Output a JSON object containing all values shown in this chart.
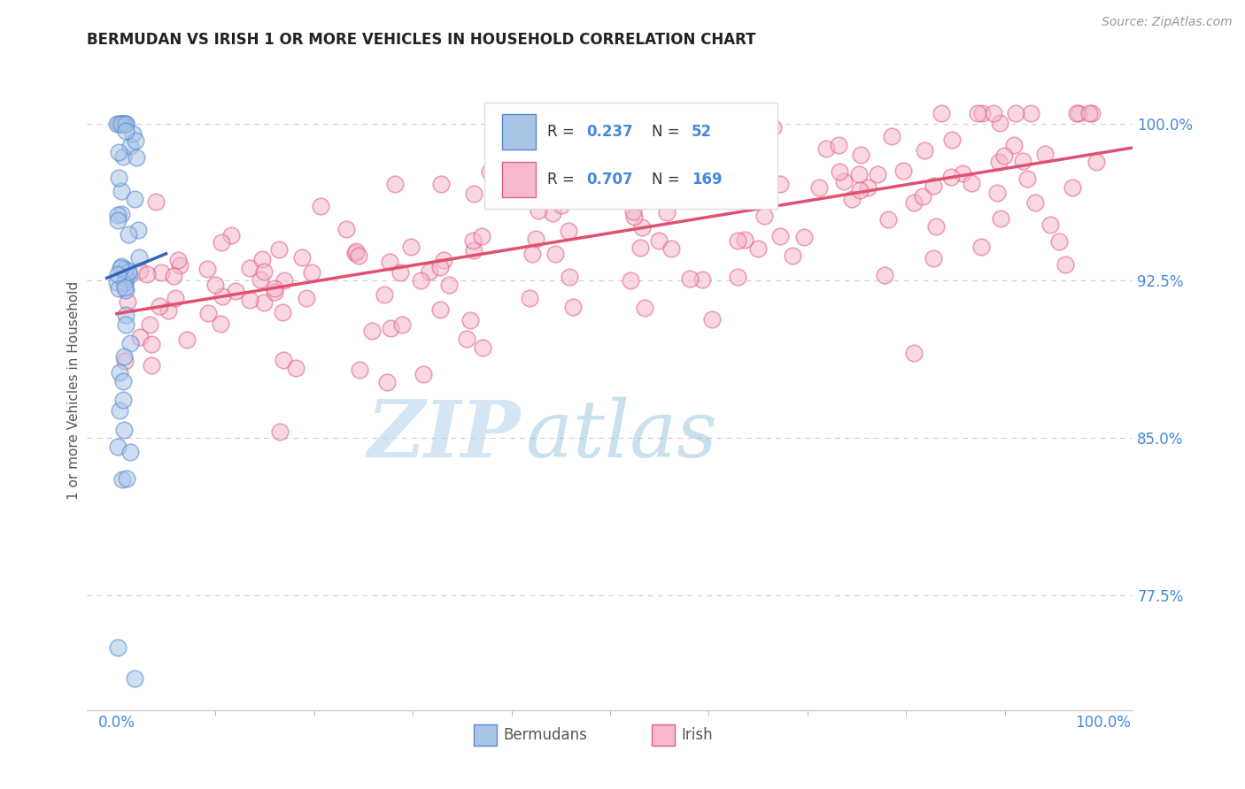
{
  "title": "BERMUDAN VS IRISH 1 OR MORE VEHICLES IN HOUSEHOLD CORRELATION CHART",
  "source": "Source: ZipAtlas.com",
  "ylabel": "1 or more Vehicles in Household",
  "watermark_zip": "ZIP",
  "watermark_atlas": "atlas",
  "legend_labels": [
    "Bermudans",
    "Irish"
  ],
  "bermudans": {
    "R": 0.237,
    "N": 52,
    "fill_color": "#aac4e8",
    "edge_color": "#5588cc",
    "line_color": "#3366bb"
  },
  "irish": {
    "R": 0.707,
    "N": 169,
    "fill_color": "#f5b8cc",
    "edge_color": "#e06080",
    "line_color": "#e05070"
  },
  "xlim": [
    -3,
    103
  ],
  "ylim": [
    72.0,
    102.5
  ],
  "ytick_vals": [
    77.5,
    85.0,
    92.5,
    100.0
  ],
  "background_color": "#ffffff",
  "grid_color": "#cccccc",
  "tick_label_color": "#4488dd",
  "title_color": "#222222",
  "ylabel_color": "#555555",
  "source_color": "#999999",
  "scatter_size": 180,
  "scatter_alpha": 0.55,
  "scatter_lw": 1.2
}
